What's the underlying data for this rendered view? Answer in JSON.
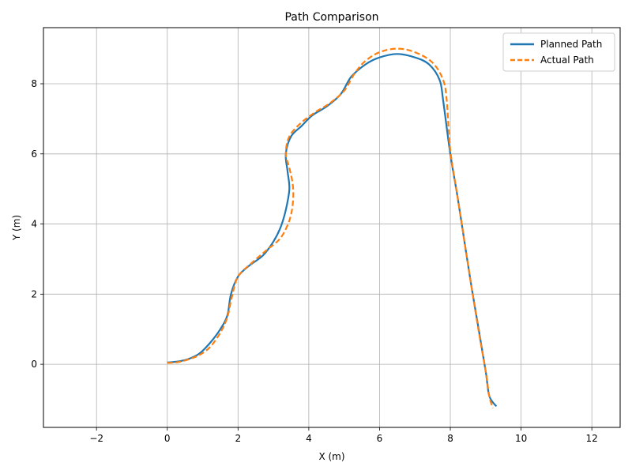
{
  "chart_data": {
    "type": "line",
    "title": "Path Comparison",
    "xlabel": "X (m)",
    "ylabel": "Y (m)",
    "xlim": [
      -3.5,
      12.8
    ],
    "ylim": [
      -1.8,
      9.6
    ],
    "xticks": [
      -2,
      0,
      2,
      4,
      6,
      8,
      10,
      12
    ],
    "yticks": [
      0,
      2,
      4,
      6,
      8
    ],
    "grid": true,
    "legend_position": "top-right",
    "series": [
      {
        "name": "Planned Path",
        "color": "#1f77b4",
        "style": "solid",
        "points": [
          [
            0.0,
            0.05
          ],
          [
            0.3,
            0.08
          ],
          [
            0.6,
            0.15
          ],
          [
            0.9,
            0.3
          ],
          [
            1.2,
            0.6
          ],
          [
            1.5,
            1.0
          ],
          [
            1.7,
            1.4
          ],
          [
            1.8,
            2.0
          ],
          [
            2.0,
            2.5
          ],
          [
            2.3,
            2.8
          ],
          [
            2.7,
            3.1
          ],
          [
            3.0,
            3.5
          ],
          [
            3.2,
            3.9
          ],
          [
            3.35,
            4.4
          ],
          [
            3.45,
            5.0
          ],
          [
            3.4,
            5.5
          ],
          [
            3.35,
            6.0
          ],
          [
            3.5,
            6.5
          ],
          [
            3.8,
            6.8
          ],
          [
            4.1,
            7.1
          ],
          [
            4.5,
            7.35
          ],
          [
            4.9,
            7.7
          ],
          [
            5.2,
            8.2
          ],
          [
            5.6,
            8.55
          ],
          [
            6.0,
            8.75
          ],
          [
            6.5,
            8.85
          ],
          [
            7.0,
            8.75
          ],
          [
            7.4,
            8.55
          ],
          [
            7.7,
            8.1
          ],
          [
            7.8,
            7.5
          ],
          [
            8.0,
            6.0
          ],
          [
            8.2,
            4.8
          ],
          [
            8.4,
            3.5
          ],
          [
            8.6,
            2.2
          ],
          [
            8.8,
            1.0
          ],
          [
            9.0,
            -0.2
          ],
          [
            9.1,
            -0.9
          ],
          [
            9.3,
            -1.2
          ]
        ]
      },
      {
        "name": "Actual Path",
        "color": "#ff7f0e",
        "style": "dashed",
        "points": [
          [
            0.0,
            0.04
          ],
          [
            0.3,
            0.06
          ],
          [
            0.6,
            0.14
          ],
          [
            0.9,
            0.26
          ],
          [
            1.2,
            0.48
          ],
          [
            1.5,
            0.9
          ],
          [
            1.7,
            1.35
          ],
          [
            1.82,
            1.9
          ],
          [
            2.0,
            2.5
          ],
          [
            2.4,
            2.9
          ],
          [
            2.8,
            3.25
          ],
          [
            3.2,
            3.6
          ],
          [
            3.45,
            4.1
          ],
          [
            3.55,
            4.6
          ],
          [
            3.55,
            5.1
          ],
          [
            3.45,
            5.6
          ],
          [
            3.35,
            6.0
          ],
          [
            3.45,
            6.5
          ],
          [
            3.8,
            6.9
          ],
          [
            4.2,
            7.2
          ],
          [
            4.6,
            7.45
          ],
          [
            5.0,
            7.8
          ],
          [
            5.3,
            8.3
          ],
          [
            5.6,
            8.65
          ],
          [
            6.0,
            8.9
          ],
          [
            6.5,
            9.0
          ],
          [
            7.0,
            8.9
          ],
          [
            7.5,
            8.6
          ],
          [
            7.8,
            8.1
          ],
          [
            7.9,
            7.5
          ],
          [
            8.0,
            6.1
          ],
          [
            8.2,
            4.8
          ],
          [
            8.4,
            3.5
          ],
          [
            8.6,
            2.2
          ],
          [
            8.8,
            0.95
          ],
          [
            9.0,
            -0.2
          ],
          [
            9.1,
            -0.9
          ],
          [
            9.2,
            -1.25
          ]
        ]
      }
    ]
  }
}
